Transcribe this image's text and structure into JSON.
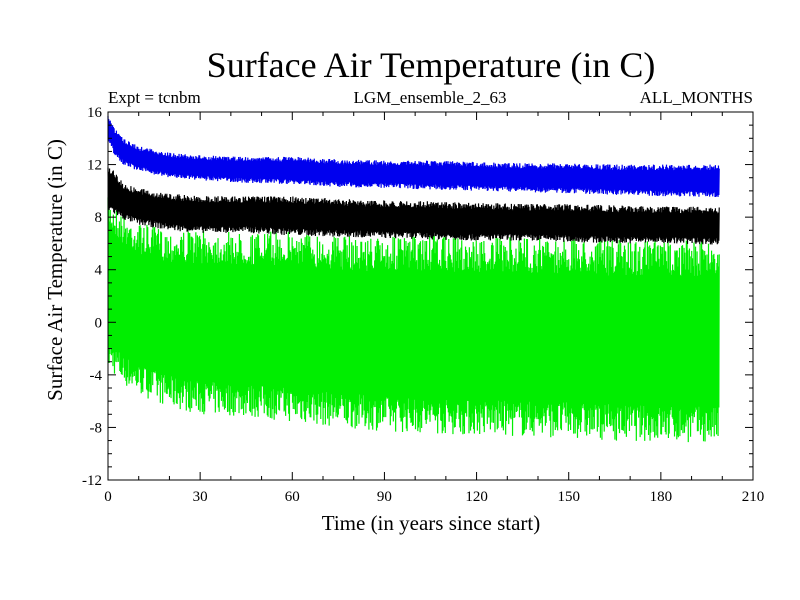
{
  "chart_data": {
    "type": "line",
    "title": "Surface Air Temperature (in C)",
    "subtitle_left": "Expt = tcnbm",
    "subtitle_center": "LGM_ensemble_2_63",
    "subtitle_right": "ALL_MONTHS",
    "xlabel": "Time (in years since start)",
    "ylabel": "Surface Air Temperature (in C)",
    "xlim": [
      0,
      210
    ],
    "ylim": [
      -12,
      16
    ],
    "xticks": [
      0,
      30,
      60,
      90,
      120,
      150,
      180,
      210
    ],
    "xtick_labels": [
      "0",
      "30",
      "60",
      "90",
      "120",
      "150",
      "180",
      "210"
    ],
    "yticks": [
      -12,
      -8,
      -4,
      0,
      4,
      8,
      12,
      16
    ],
    "ytick_labels": [
      "-12",
      "-8",
      "-4",
      "0",
      "4",
      "8",
      "12",
      "16"
    ],
    "grid": false,
    "series": [
      {
        "name": "green",
        "color": "#00ee00",
        "x": [
          0,
          2,
          5,
          10,
          20,
          30,
          45,
          60,
          75,
          90,
          105,
          120,
          135,
          150,
          165,
          180,
          199
        ],
        "max": [
          9.5,
          9.0,
          8.2,
          7.6,
          7.0,
          7.0,
          6.8,
          7.0,
          6.6,
          6.5,
          6.6,
          6.4,
          6.5,
          6.4,
          6.3,
          6.3,
          6.2
        ],
        "min": [
          -3.5,
          -4.0,
          -4.8,
          -5.5,
          -6.5,
          -7.0,
          -7.2,
          -7.6,
          -8.0,
          -8.3,
          -8.5,
          -8.6,
          -8.7,
          -8.8,
          -9.0,
          -9.1,
          -9.2
        ]
      },
      {
        "name": "black",
        "color": "#000000",
        "x": [
          0,
          2,
          5,
          10,
          20,
          30,
          45,
          60,
          75,
          90,
          105,
          120,
          135,
          150,
          165,
          180,
          199
        ],
        "max": [
          12.0,
          11.6,
          10.6,
          10.2,
          9.8,
          9.6,
          9.6,
          9.6,
          9.4,
          9.3,
          9.2,
          9.1,
          9.0,
          9.0,
          8.9,
          8.8,
          8.8
        ],
        "min": [
          8.5,
          8.2,
          7.8,
          7.4,
          7.0,
          6.8,
          6.8,
          6.6,
          6.5,
          6.4,
          6.3,
          6.2,
          6.2,
          6.1,
          6.0,
          6.0,
          5.9
        ]
      },
      {
        "name": "blue",
        "color": "#0000ee",
        "x": [
          0,
          2,
          5,
          10,
          20,
          30,
          45,
          60,
          75,
          90,
          105,
          120,
          135,
          150,
          165,
          180,
          199
        ],
        "max": [
          15.8,
          14.8,
          14.0,
          13.4,
          12.9,
          12.7,
          12.6,
          12.6,
          12.4,
          12.3,
          12.3,
          12.2,
          12.1,
          12.1,
          12.0,
          12.0,
          12.0
        ],
        "min": [
          13.8,
          12.8,
          12.0,
          11.5,
          11.0,
          10.8,
          10.6,
          10.5,
          10.3,
          10.2,
          10.1,
          10.0,
          9.9,
          9.8,
          9.7,
          9.6,
          9.5
        ]
      }
    ]
  }
}
